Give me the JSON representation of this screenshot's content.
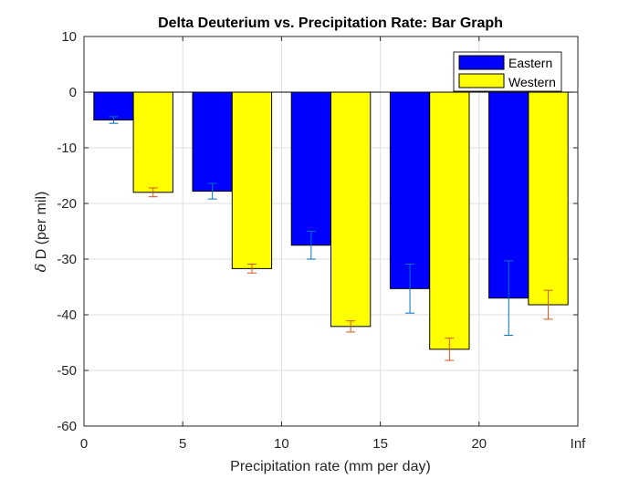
{
  "chart_data": {
    "type": "bar",
    "title": "Delta Deuterium vs. Precipitation Rate: Bar Graph",
    "xlabel": "Precipitation rate (mm per day)",
    "ylabel_symbol": "δ",
    "ylabel_text": " D (per mil)",
    "xlim": [
      0,
      25
    ],
    "ylim": [
      -60,
      10
    ],
    "x_ticks": [
      0,
      5,
      10,
      15,
      20,
      25
    ],
    "x_tick_labels": [
      "0",
      "5",
      "10",
      "15",
      "20",
      "Inf"
    ],
    "y_ticks": [
      10,
      0,
      -10,
      -20,
      -30,
      -40,
      -50,
      -60
    ],
    "y_tick_labels": [
      "10",
      "0",
      "-10",
      "-20",
      "-30",
      "-40",
      "-50",
      "-60"
    ],
    "grid": true,
    "legend_position": "top-right",
    "categories": [
      2.5,
      7.5,
      12.5,
      17.5,
      22.5
    ],
    "series": [
      {
        "name": "Eastern",
        "color": "#0000ff",
        "error_color": "#0072bd",
        "values": [
          -5.0,
          -17.8,
          -27.5,
          -35.3,
          -37.0
        ],
        "errors": [
          0.6,
          1.4,
          2.5,
          4.4,
          6.7
        ]
      },
      {
        "name": "Western",
        "color": "#ffff00",
        "error_color": "#d95319",
        "values": [
          -18.0,
          -31.7,
          -42.1,
          -46.2,
          -38.2
        ],
        "errors": [
          0.8,
          0.8,
          1.0,
          2.0,
          2.6
        ]
      }
    ]
  }
}
